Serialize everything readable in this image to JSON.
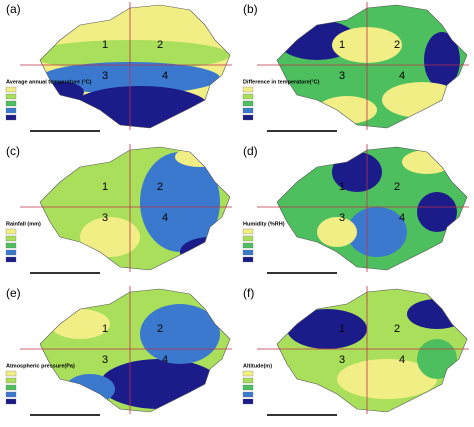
{
  "panels": [
    {
      "label": "(a)",
      "legend_title": "Average annual temperature (°C)",
      "quadrants": [
        "1",
        "2",
        "3",
        "4"
      ]
    },
    {
      "label": "(b)",
      "legend_title": "Difference in temperature(°C)",
      "quadrants": [
        "1",
        "2",
        "3",
        "4"
      ]
    },
    {
      "label": "(c)",
      "legend_title": "Rainfall (mm)",
      "quadrants": [
        "1",
        "2",
        "3",
        "4"
      ]
    },
    {
      "label": "(d)",
      "legend_title": "Humidity (%RH)",
      "quadrants": [
        "1",
        "2",
        "3",
        "4"
      ]
    },
    {
      "label": "(e)",
      "legend_title": "Atmospheric pressure(Pa)",
      "quadrants": [
        "1",
        "2",
        "3",
        "4"
      ]
    },
    {
      "label": "(f)",
      "legend_title": "Altitude(m)",
      "quadrants": [
        "1",
        "2",
        "3",
        "4"
      ]
    }
  ]
}
